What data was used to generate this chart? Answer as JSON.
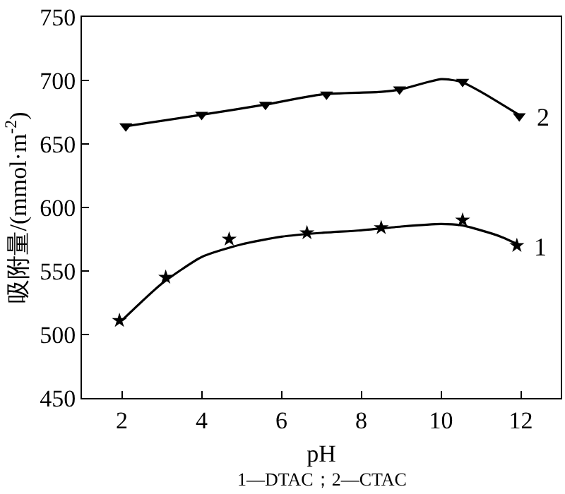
{
  "chart_data": {
    "type": "scatter",
    "xlabel": "pH",
    "ylabel": "吸附量/(mmol·m$^{-2}$)",
    "xlim": [
      1,
      13
    ],
    "xticks": [
      2,
      4,
      6,
      8,
      10,
      12
    ],
    "ylim": [
      450,
      750
    ],
    "yticks": [
      450,
      500,
      550,
      600,
      650,
      700,
      750
    ],
    "series": [
      {
        "name": "1",
        "marker": "star",
        "color": "#000000",
        "x": [
          1.94,
          3.1,
          4.69,
          6.64,
          8.5,
          10.54,
          11.9
        ],
        "values": [
          511,
          545,
          575,
          580,
          584,
          590,
          570
        ]
      },
      {
        "type": "line",
        "marker": "none",
        "line_style": "solid",
        "color": "#000000",
        "x": [
          2,
          3,
          4,
          5,
          6,
          7,
          8,
          9,
          10,
          10.5,
          11,
          11.5,
          12
        ],
        "values": [
          511,
          540,
          561,
          571,
          577,
          580,
          582,
          585,
          587,
          586,
          582,
          577,
          570
        ]
      },
      {
        "name": "2",
        "marker": "triangle",
        "color": "#000000",
        "x": [
          2.1,
          4.0,
          5.6,
          7.13,
          8.96,
          10.54,
          11.96
        ],
        "values": [
          664,
          673,
          681,
          689,
          693,
          699,
          672
        ]
      },
      {
        "type": "line",
        "marker": "none",
        "line_style": "solid",
        "color": "#000000",
        "x": [
          2.1,
          4,
          5.6,
          7,
          8.5,
          9,
          10,
          10.5,
          11,
          12
        ],
        "values": [
          664,
          673,
          681,
          689,
          691,
          693,
          701,
          699,
          691,
          672
        ]
      }
    ],
    "annotations": [
      "1—DTAC；2—CTAC"
    ]
  }
}
